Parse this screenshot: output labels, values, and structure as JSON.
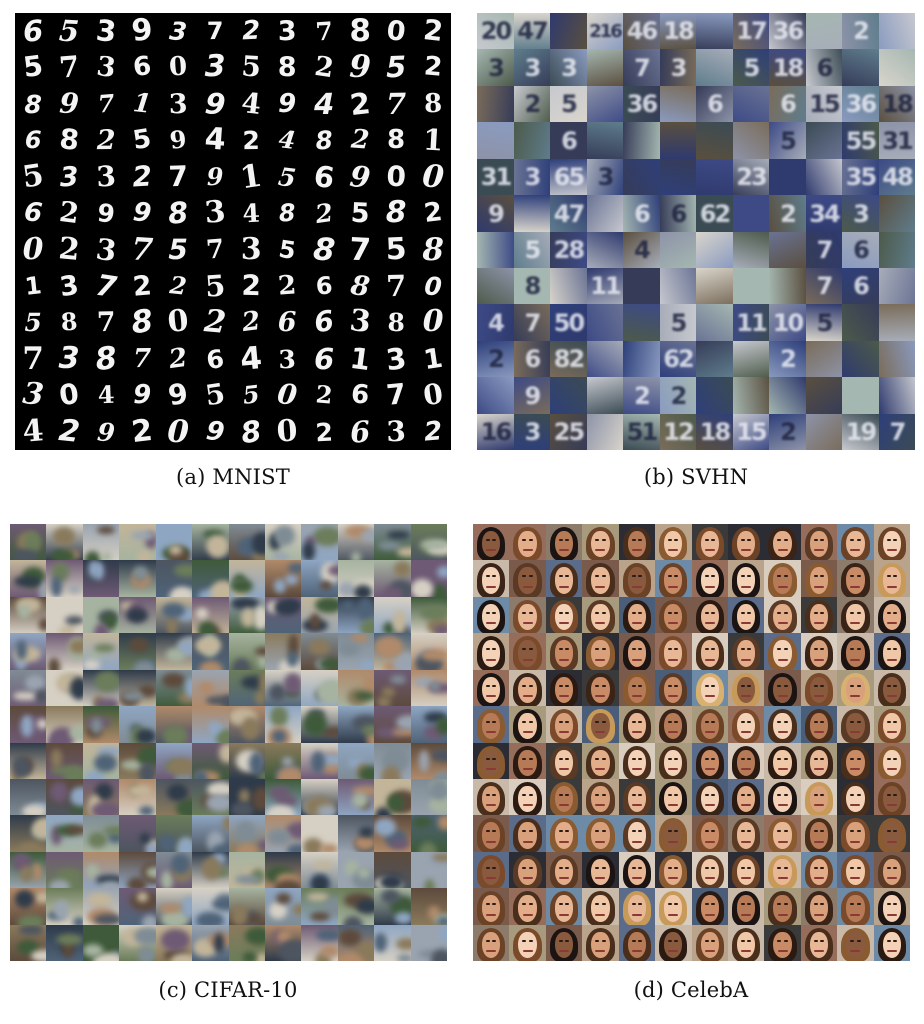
{
  "panels": {
    "mnist": {
      "caption": "(a) MNIST"
    },
    "svhn": {
      "caption": "(b) SVHN"
    },
    "cifar": {
      "caption": "(c) CIFAR-10"
    },
    "celeba": {
      "caption": "(d) CelebA"
    }
  },
  "mnist_digits": [
    "653937237802",
    "573603582952",
    "897139494278",
    "682594248281",
    "533279156900",
    "629983482582",
    "023757358758",
    "137225226870",
    "587802266380",
    "738726436131",
    "304995502670",
    "429209802632"
  ],
  "svhn_labels": [
    [
      "20",
      "47",
      "",
      "216",
      "46",
      "18",
      "",
      "17",
      "36",
      "",
      "2",
      ""
    ],
    [
      "3",
      "3",
      "3",
      "",
      "7",
      "3",
      "",
      "5",
      "18",
      "6",
      "",
      ""
    ],
    [
      "",
      "2",
      "5",
      "",
      "36",
      "",
      "6",
      "",
      "6",
      "15",
      "36",
      "18"
    ],
    [
      "",
      "",
      "6",
      "",
      "",
      "",
      "",
      "",
      "5",
      "",
      "55",
      "31"
    ],
    [
      "31",
      "3",
      "65",
      "3",
      "",
      "",
      "",
      "23",
      "",
      "",
      "35",
      "48"
    ],
    [
      "9",
      "",
      "47",
      "",
      "6",
      "6",
      "62",
      "",
      "2",
      "34",
      "3",
      ""
    ],
    [
      "",
      "5",
      "28",
      "",
      "4",
      "",
      "",
      "",
      "",
      "7",
      "6",
      ""
    ],
    [
      "",
      "8",
      "",
      "11",
      "",
      "",
      "",
      "",
      "",
      "7",
      "6",
      ""
    ],
    [
      "4",
      "7",
      "50",
      "",
      "",
      "5",
      "",
      "11",
      "10",
      "5",
      "",
      ""
    ],
    [
      "2",
      "6",
      "82",
      "",
      "",
      "62",
      "",
      "",
      "2",
      "",
      "",
      ""
    ],
    [
      "",
      "9",
      "",
      "",
      "2",
      "2",
      "",
      "",
      "",
      "",
      "",
      ""
    ],
    [
      "16",
      "3",
      "25",
      "",
      "51",
      "12",
      "18",
      "15",
      "2",
      "",
      "19",
      "7"
    ]
  ]
}
